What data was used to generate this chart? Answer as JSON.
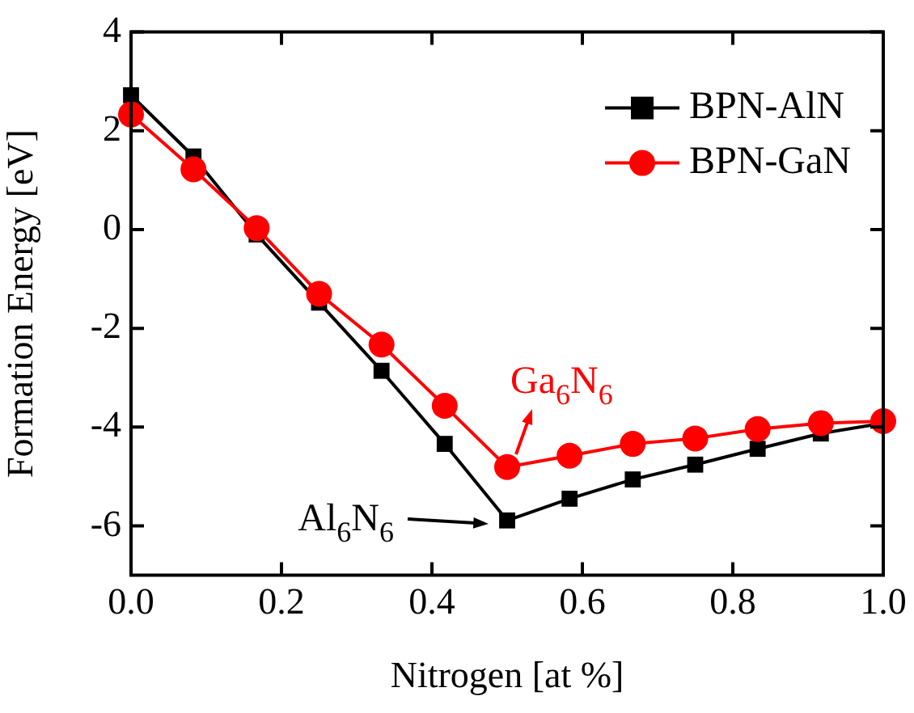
{
  "chart_data": {
    "type": "line",
    "xlabel": "Nitrogen [at %]",
    "ylabel": "Formation Energy [eV]",
    "x": [
      0,
      0.083,
      0.167,
      0.25,
      0.333,
      0.417,
      0.5,
      0.583,
      0.667,
      0.75,
      0.833,
      0.917,
      1
    ],
    "series": [
      {
        "name": "BPN-AlN",
        "color": "#000000",
        "marker": "square",
        "values": [
          2.72,
          1.48,
          -0.1,
          -1.48,
          -2.86,
          -4.34,
          -5.89,
          -5.45,
          -5.06,
          -4.76,
          -4.44,
          -4.13,
          -3.92
        ]
      },
      {
        "name": "BPN-GaN",
        "color": "#ff0000",
        "marker": "circle",
        "values": [
          2.33,
          1.22,
          0.03,
          -1.3,
          -2.33,
          -3.57,
          -4.81,
          -4.58,
          -4.34,
          -4.23,
          -4.04,
          -3.92,
          -3.88
        ]
      }
    ],
    "xlim": [
      0,
      1
    ],
    "xticks": [
      {
        "value": 0,
        "label": "0.0"
      },
      {
        "value": 0.2,
        "label": "0.2"
      },
      {
        "value": 0.4,
        "label": "0.4"
      },
      {
        "value": 0.6,
        "label": "0.6"
      },
      {
        "value": 0.8,
        "label": "0.8"
      },
      {
        "value": 1,
        "label": "1.0"
      }
    ],
    "ylim": [
      -7,
      4
    ],
    "yticks": [
      -6,
      -4,
      -2,
      0,
      2,
      4
    ],
    "annotations": [
      {
        "text": "Al$_{6}$N$_{6}$",
        "x": 0.5,
        "y": -5.89
      },
      {
        "text": "Ga$_{6}$N$_{6}$",
        "x": 0.5,
        "y": -4.81
      }
    ],
    "legend": "top right",
    "line_style": "solid"
  }
}
